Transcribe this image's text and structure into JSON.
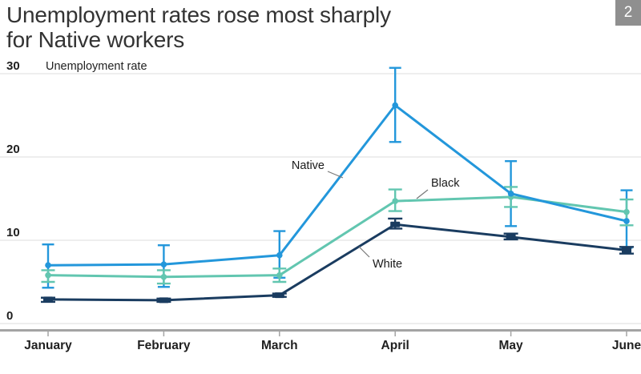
{
  "header": {
    "title_line1": "Unemployment rates rose most sharply",
    "title_line2": "for Native workers",
    "badge": "2"
  },
  "chart_data": {
    "type": "line",
    "title": "Unemployment rates rose most sharply for Native workers",
    "ylabel": "Unemployment rate",
    "xlabel": "",
    "categories": [
      "January",
      "February",
      "March",
      "April",
      "May",
      "June"
    ],
    "y_ticks": [
      0,
      10,
      20,
      30
    ],
    "ylim": [
      0,
      31
    ],
    "grid": true,
    "legend_position": "inline-annotations",
    "error_bars": true,
    "series": [
      {
        "name": "Native",
        "color": "#2397DB",
        "values": [
          7.0,
          7.1,
          8.2,
          26.2,
          15.6,
          12.3
        ],
        "ci_low": [
          4.3,
          4.4,
          5.5,
          21.8,
          11.7,
          9.1
        ],
        "ci_high": [
          9.5,
          9.4,
          11.1,
          30.7,
          19.5,
          16.0
        ]
      },
      {
        "name": "Black",
        "color": "#62C6B0",
        "values": [
          5.8,
          5.6,
          5.8,
          14.7,
          15.2,
          13.4
        ],
        "ci_low": [
          5.0,
          4.8,
          5.0,
          13.5,
          14.0,
          11.8
        ],
        "ci_high": [
          6.4,
          6.4,
          6.6,
          16.1,
          16.4,
          14.9
        ]
      },
      {
        "name": "White",
        "color": "#1A3C60",
        "values": [
          2.9,
          2.8,
          3.4,
          11.9,
          10.4,
          8.8
        ],
        "ci_low": [
          2.6,
          2.6,
          3.2,
          11.4,
          10.1,
          8.4
        ],
        "ci_high": [
          3.1,
          3.0,
          3.6,
          12.6,
          10.8,
          9.2
        ]
      }
    ],
    "annotations": [
      {
        "text": "Native",
        "series": "Native"
      },
      {
        "text": "Black",
        "series": "Black"
      },
      {
        "text": "White",
        "series": "White"
      }
    ],
    "colors": {
      "grid": "#E4E4E4",
      "axis": "#A4A4A4",
      "tick_label": "#1F1F1F",
      "annotation_text": "#1A1A1A",
      "annotation_line": "#777777"
    }
  }
}
